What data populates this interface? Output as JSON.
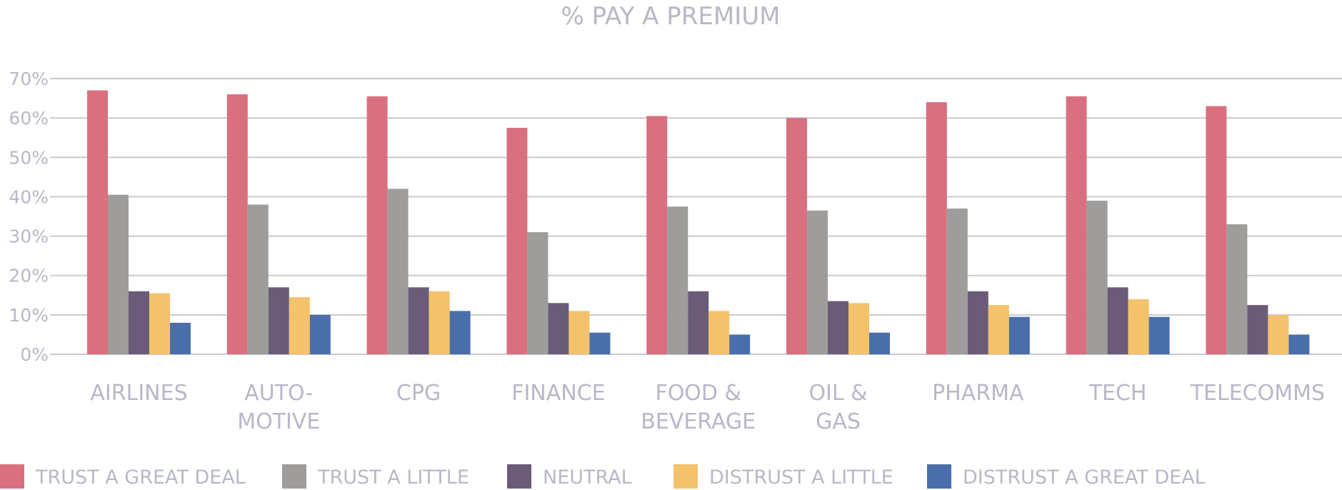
{
  "chart_data": {
    "type": "bar",
    "title": "% PAY A PREMIUM",
    "categories": [
      [
        "AIRLINES"
      ],
      [
        "AUTO-",
        "MOTIVE"
      ],
      [
        "CPG"
      ],
      [
        "FINANCE"
      ],
      [
        "FOOD &",
        "BEVERAGE"
      ],
      [
        "OIL &",
        "GAS"
      ],
      [
        "PHARMA"
      ],
      [
        "TECH"
      ],
      [
        "TELECOMMS"
      ]
    ],
    "y_ticks": [
      "0%",
      "10%",
      "20%",
      "30%",
      "40%",
      "50%",
      "60%",
      "70%"
    ],
    "ylim": [
      0,
      70
    ],
    "grid": true,
    "legend_position": "bottom",
    "series": [
      {
        "name": "TRUST A GREAT DEAL",
        "color": "#d9707f",
        "values": [
          67,
          66,
          65.5,
          57.5,
          60.5,
          60,
          64,
          65.5,
          63
        ]
      },
      {
        "name": "TRUST A LITTLE",
        "color": "#9e9d9b",
        "values": [
          40.5,
          38,
          42,
          31,
          37.5,
          36.5,
          37,
          39,
          33
        ]
      },
      {
        "name": "NEUTRAL",
        "color": "#6a5c78",
        "values": [
          16,
          17,
          17,
          13,
          16,
          13.5,
          16,
          17,
          12.5
        ]
      },
      {
        "name": "DISTRUST A LITTLE",
        "color": "#f3c26b",
        "values": [
          15.5,
          14.5,
          16,
          11,
          11,
          13,
          12.5,
          14,
          10
        ]
      },
      {
        "name": "DISTRUST A GREAT DEAL",
        "color": "#4a6eaa",
        "values": [
          8,
          10,
          11,
          5.5,
          5,
          5.5,
          9.5,
          9.5,
          5
        ]
      }
    ]
  }
}
